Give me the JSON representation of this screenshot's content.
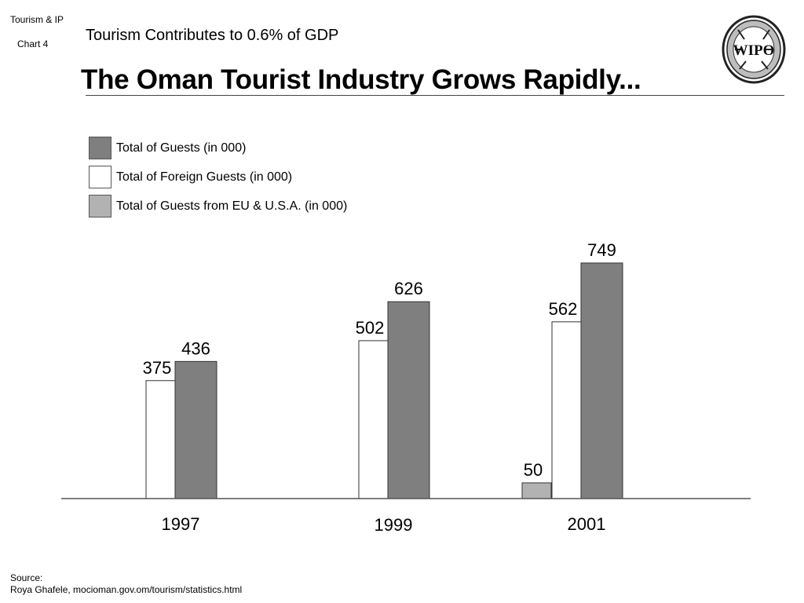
{
  "corner": {
    "line1": "Tourism & IP",
    "line2": "Chart 4"
  },
  "subtitle": "Tourism Contributes to 0.6% of GDP",
  "title": "The Oman Tourist Industry Grows Rapidly...",
  "logo": {
    "icon": "wipo-seal-icon",
    "text": "WIPO"
  },
  "colors": {
    "total": "#7f7f7f",
    "foreign": "#ffffff",
    "eu_usa": "#b2b2b2",
    "outline": "#333333",
    "axis": "#555555"
  },
  "legend": [
    {
      "label": "Total of Guests (in 000)",
      "color": "#7f7f7f"
    },
    {
      "label": "Total of Foreign Guests (in 000)",
      "color": "#ffffff"
    },
    {
      "label": "Total of Guests from EU & U.S.A. (in 000)",
      "color": "#b2b2b2"
    }
  ],
  "chart_data": {
    "type": "bar",
    "title": "The Oman Tourist Industry Grows Rapidly...",
    "xlabel": "",
    "ylabel": "",
    "categories": [
      "1997",
      "1999",
      "2001"
    ],
    "series": [
      {
        "name": "Total of Guests from EU & U.S.A. (in 000)",
        "values": [
          null,
          null,
          50
        ]
      },
      {
        "name": "Total of Foreign Guests (in 000)",
        "values": [
          375,
          502,
          562
        ]
      },
      {
        "name": "Total of Guests (in 000)",
        "values": [
          436,
          626,
          749
        ]
      }
    ],
    "ylim": [
      0,
      749
    ],
    "grid": false,
    "legend_position": "top-left"
  },
  "footer": {
    "source_label": "Source:",
    "source_text": "Roya Ghafele, mocioman.gov.om/tourism/statistics.html"
  }
}
